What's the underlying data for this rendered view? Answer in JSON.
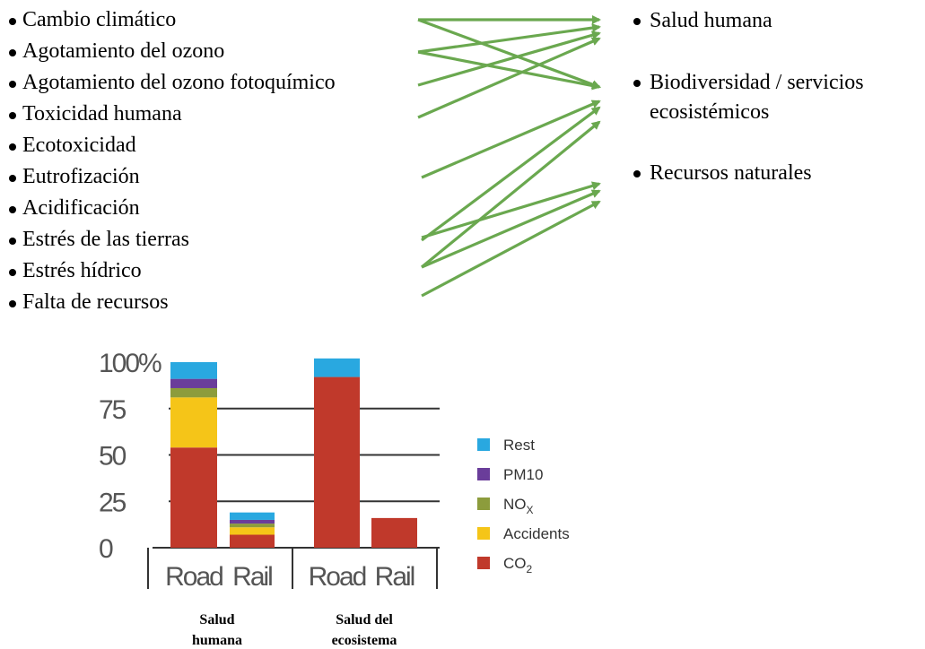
{
  "impact_categories": [
    "Cambio climático",
    "Agotamiento del ozono",
    "Agotamiento del ozono fotoquímico",
    "Toxicidad humana",
    "Ecotoxicidad",
    "Eutrofización",
    "Acidificación",
    "Estrés de las tierras",
    "Estrés hídrico",
    "Falta de recursos"
  ],
  "damage_areas": [
    {
      "line1": "Salud humana",
      "line2": ""
    },
    {
      "line1": "Biodiversidad / servicios",
      "line2": "ecosistémicos"
    },
    {
      "line1": "Recursos naturales",
      "line2": ""
    }
  ],
  "arrow_color": "#6aa84f",
  "chart_data": {
    "type": "bar",
    "stacked": true,
    "groups": [
      {
        "label_line1": "Salud",
        "label_line2": "humana",
        "categories": [
          "Road",
          "Rail"
        ]
      },
      {
        "label_line1": "Salud del",
        "label_line2": "ecosistema",
        "categories": [
          "Road",
          "Rail"
        ]
      }
    ],
    "categories": [
      "Road",
      "Rail",
      "Road",
      "Rail"
    ],
    "y_ticks": [
      "100%",
      "75",
      "50",
      "25",
      "0"
    ],
    "ylim": [
      0,
      100
    ],
    "series": [
      {
        "name": "CO",
        "subscript": "2",
        "color": "#c0392b",
        "values": [
          54,
          7,
          92,
          16
        ]
      },
      {
        "name": "Accidents",
        "subscript": "",
        "color": "#f5c518",
        "values": [
          27,
          4,
          0,
          0
        ]
      },
      {
        "name": "NO",
        "subscript": "X",
        "color": "#8c9c3c",
        "values": [
          5,
          2,
          0,
          0
        ]
      },
      {
        "name": "PM10",
        "subscript": "",
        "color": "#6a3d9a",
        "values": [
          5,
          2,
          0,
          0
        ]
      },
      {
        "name": "Rest",
        "subscript": "",
        "color": "#29a8e0",
        "values": [
          9,
          4,
          10,
          0
        ]
      }
    ],
    "legend_order": [
      "Rest",
      "PM10",
      "NO",
      "Accidents",
      "CO"
    ]
  }
}
